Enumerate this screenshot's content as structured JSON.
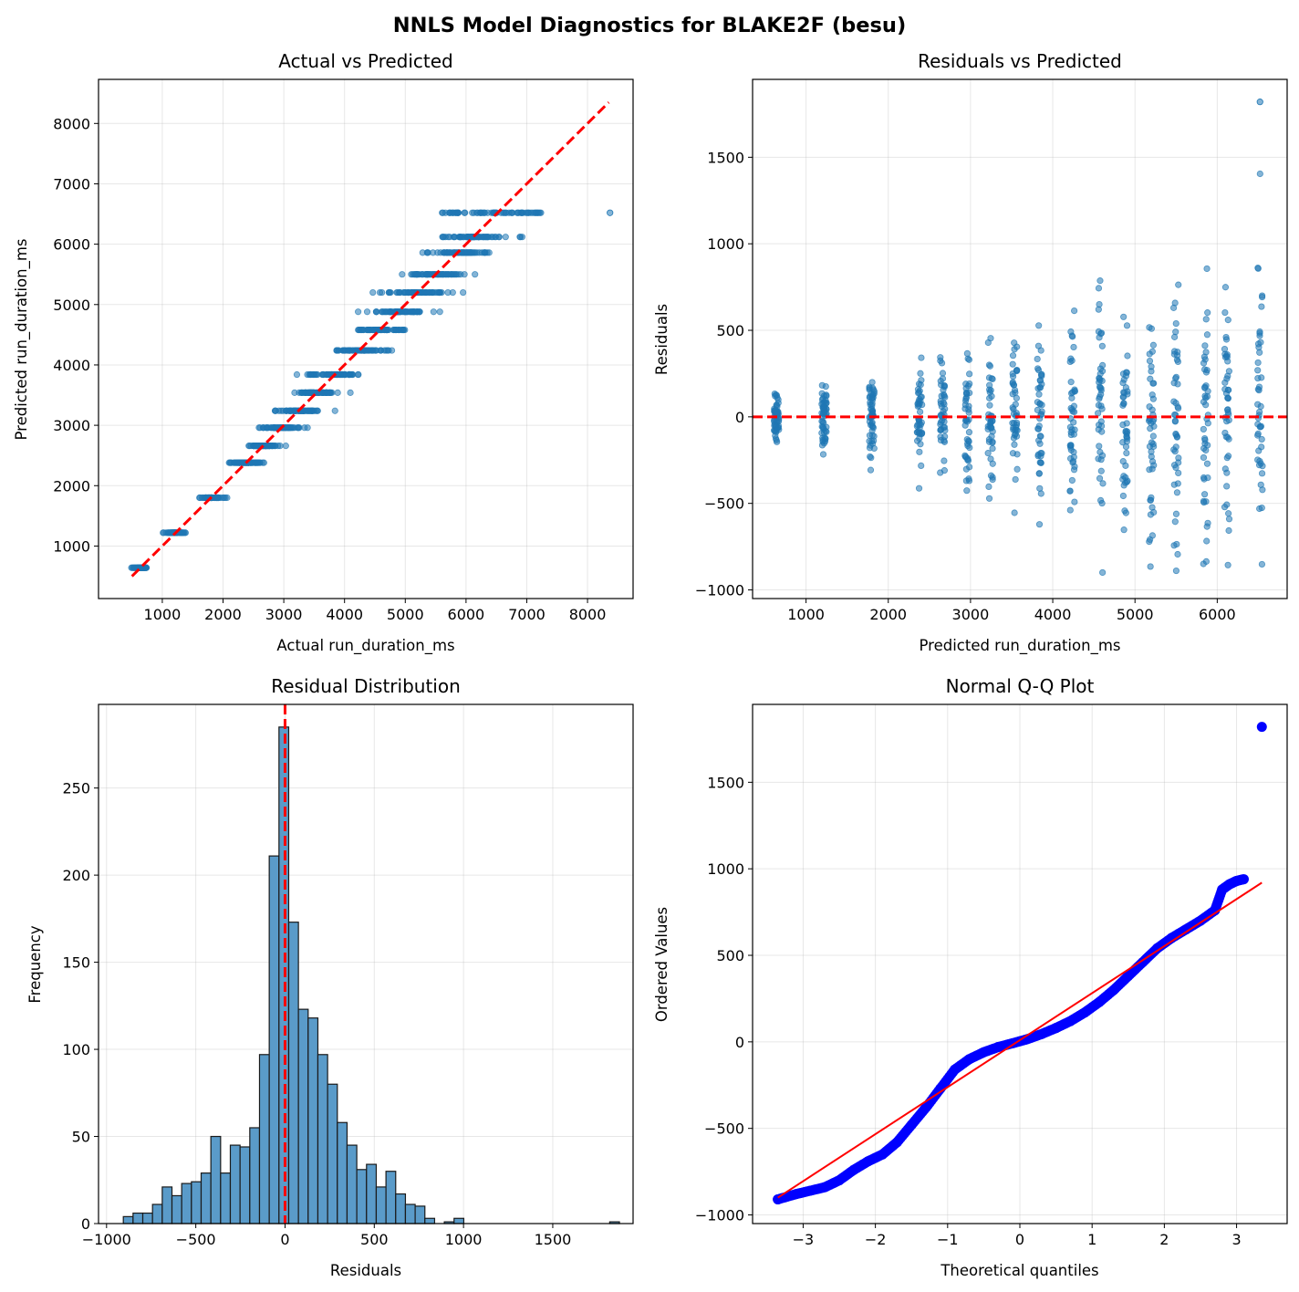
{
  "figure": {
    "suptitle": "NNLS Model Diagnostics for BLAKE2F (besu)"
  },
  "colors": {
    "scatter": "#1f77b4",
    "reference": "#ff0000",
    "qq_points": "#0000ff",
    "hist_fill": "#5a9bc9"
  },
  "chart_data": [
    {
      "id": "actual_vs_predicted",
      "type": "scatter",
      "title": "Actual vs Predicted",
      "xlabel": "Actual run_duration_ms",
      "ylabel": "Predicted run_duration_ms",
      "xlim": [
        -50,
        8750
      ],
      "ylim": [
        130,
        8730
      ],
      "xticks": [
        1000,
        2000,
        3000,
        4000,
        5000,
        6000,
        7000,
        8000
      ],
      "yticks": [
        1000,
        2000,
        3000,
        4000,
        5000,
        6000,
        7000,
        8000
      ],
      "reference_line": {
        "from": [
          500,
          500
        ],
        "to": [
          8350,
          8350
        ],
        "style": "dashed"
      },
      "predicted_levels": [
        640,
        1220,
        1800,
        2380,
        2660,
        2960,
        3240,
        3540,
        3840,
        4240,
        4580,
        4880,
        5200,
        5500,
        5860,
        6120,
        6520
      ],
      "outlier": {
        "x": 8370,
        "y": 6520
      }
    },
    {
      "id": "residuals_vs_predicted",
      "type": "scatter",
      "title": "Residuals vs Predicted",
      "xlabel": "Predicted run_duration_ms",
      "ylabel": "Residuals",
      "xlim": [
        350,
        6850
      ],
      "ylim": [
        -1050,
        1950
      ],
      "xticks": [
        1000,
        2000,
        3000,
        4000,
        5000,
        6000
      ],
      "yticks": [
        -1000,
        -500,
        0,
        500,
        1000,
        1500
      ],
      "reference_line": {
        "y": 0,
        "style": "dashed"
      },
      "outlier": {
        "x": 6520,
        "y": 1820
      }
    },
    {
      "id": "residual_distribution",
      "type": "bar",
      "title": "Residual Distribution",
      "xlabel": "Residuals",
      "ylabel": "Frequency",
      "xlim": [
        -1045,
        1950
      ],
      "ylim": [
        0,
        298
      ],
      "xticks": [
        -1000,
        -500,
        0,
        500,
        1000,
        1500
      ],
      "yticks": [
        0,
        50,
        100,
        150,
        200,
        250
      ],
      "bin_start": -906,
      "bin_width": 54.5,
      "counts": [
        4,
        6,
        6,
        11,
        21,
        16,
        23,
        24,
        29,
        50,
        29,
        45,
        44,
        55,
        97,
        211,
        285,
        173,
        123,
        118,
        97,
        80,
        58,
        45,
        31,
        34,
        21,
        30,
        17,
        11,
        10,
        3,
        0,
        1,
        3,
        0,
        0,
        0,
        0,
        0,
        0,
        0,
        0,
        0,
        0,
        0,
        0,
        0,
        0,
        0,
        1
      ],
      "mean_line": 0
    },
    {
      "id": "normal_qq",
      "type": "scatter",
      "title": "Normal Q-Q Plot",
      "xlabel": "Theoretical quantiles",
      "ylabel": "Ordered Values",
      "xlim": [
        -3.7,
        3.7
      ],
      "ylim": [
        -1050,
        1950
      ],
      "xticks": [
        -3,
        -2,
        -1,
        0,
        1,
        2,
        3
      ],
      "yticks": [
        -1000,
        -500,
        0,
        500,
        1000,
        1500
      ],
      "fit_line": {
        "from": [
          -3.35,
          -900
        ],
        "to": [
          3.35,
          920
        ]
      },
      "ordered_points": [
        [
          -3.35,
          -910
        ],
        [
          -3.1,
          -880
        ],
        [
          -2.9,
          -860
        ],
        [
          -2.7,
          -840
        ],
        [
          -2.5,
          -800
        ],
        [
          -2.3,
          -740
        ],
        [
          -2.1,
          -690
        ],
        [
          -1.9,
          -650
        ],
        [
          -1.7,
          -580
        ],
        [
          -1.5,
          -480
        ],
        [
          -1.3,
          -380
        ],
        [
          -1.1,
          -270
        ],
        [
          -0.9,
          -160
        ],
        [
          -0.7,
          -100
        ],
        [
          -0.5,
          -60
        ],
        [
          -0.3,
          -30
        ],
        [
          -0.1,
          -8
        ],
        [
          0.1,
          15
        ],
        [
          0.3,
          45
        ],
        [
          0.5,
          80
        ],
        [
          0.7,
          120
        ],
        [
          0.9,
          170
        ],
        [
          1.1,
          230
        ],
        [
          1.3,
          300
        ],
        [
          1.5,
          380
        ],
        [
          1.7,
          460
        ],
        [
          1.9,
          540
        ],
        [
          2.1,
          600
        ],
        [
          2.3,
          650
        ],
        [
          2.5,
          700
        ],
        [
          2.7,
          760
        ],
        [
          2.8,
          880
        ],
        [
          2.9,
          910
        ],
        [
          3.0,
          930
        ],
        [
          3.1,
          940
        ],
        [
          3.35,
          1820
        ]
      ]
    }
  ]
}
